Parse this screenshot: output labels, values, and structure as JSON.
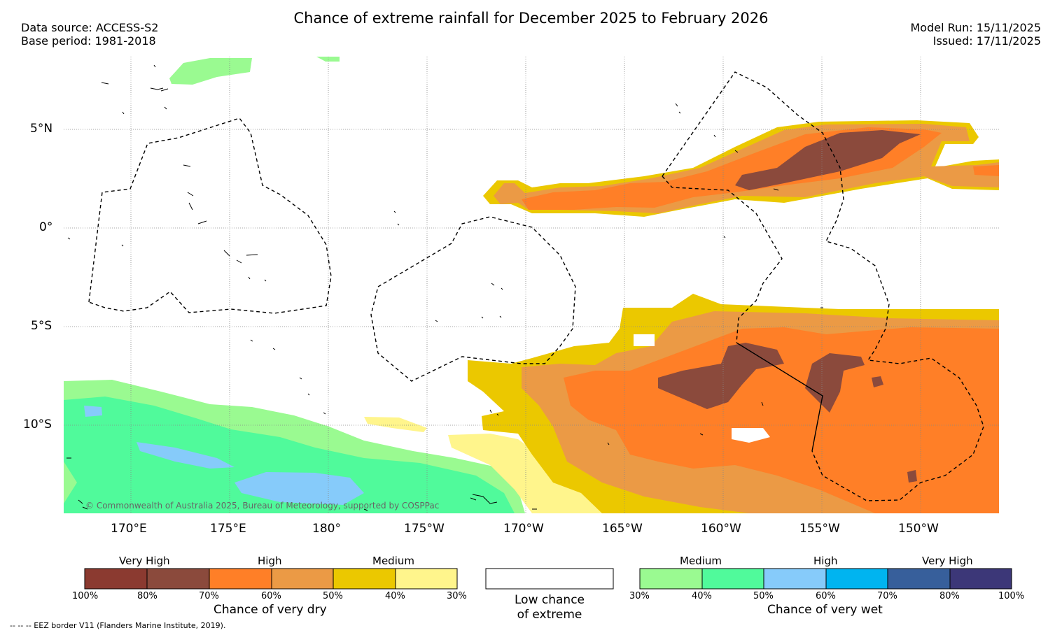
{
  "header": {
    "title": "Chance of extreme rainfall for December 2025 to February 2026",
    "data_source": "Data source: ACCESS-S2",
    "base_period": "Base period: 1981-2018",
    "model_run": "Model Run: 15/11/2025",
    "issued": "Issued: 17/11/2025"
  },
  "map": {
    "lat_labels": [
      "5°N",
      "0°",
      "5°S",
      "10°S"
    ],
    "lon_labels": [
      "170°E",
      "175°E",
      "180°",
      "175°W",
      "170°W",
      "165°W",
      "160°W",
      "155°W",
      "150°W"
    ],
    "copyright": "© Commonwealth of Australia 2025, Bureau of Meteorology, supported by COSPPac"
  },
  "legend_dry": {
    "title": "Chance of very dry",
    "categories": [
      "Very High",
      "High",
      "Medium"
    ],
    "ticks": [
      "100%",
      "80%",
      "70%",
      "60%",
      "50%",
      "40%",
      "30%"
    ],
    "colors": [
      "#8b3a30",
      "#8b4a3c",
      "#ff7f27",
      "#eb9a45",
      "#ebc800",
      "#fff58c"
    ]
  },
  "legend_low": {
    "line1": "Low chance",
    "line2": "of extreme"
  },
  "legend_wet": {
    "title": "Chance of very wet",
    "categories": [
      "Medium",
      "High",
      "Very High"
    ],
    "ticks": [
      "30%",
      "40%",
      "50%",
      "60%",
      "70%",
      "80%",
      "100%"
    ],
    "colors": [
      "#9afa91",
      "#50fa9b",
      "#86cbfa",
      "#00b4f0",
      "#375f9b",
      "#3c3778"
    ]
  },
  "footnote": "-- -- -- EEZ border V11 (Flanders Marine Institute, 2019)."
}
